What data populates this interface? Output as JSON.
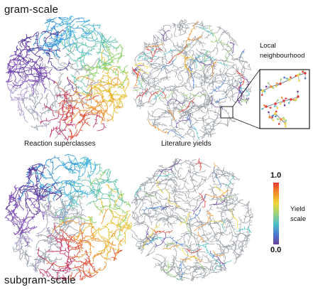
{
  "headings": {
    "top": "gram-scale",
    "bottom": "subgram-scale"
  },
  "panels": {
    "left_label": "Reaction superclasses",
    "right_label": "Literature yields"
  },
  "inset": {
    "label_line1": "Local",
    "label_line2": "neighbourhood"
  },
  "colorbar": {
    "max_label": "1.0",
    "min_label": "0.0",
    "title_line1": "Yield",
    "title_line2": "scale",
    "gradient_colors": [
      "#e53935",
      "#f28e2b",
      "#f2d43a",
      "#9fd37a",
      "#4fc1c4",
      "#4a7bd1",
      "#6a3fa0"
    ]
  },
  "palette": {
    "superclasses": [
      "#7b4bb5",
      "#5a3c9e",
      "#2f8fd8",
      "#49b5e0",
      "#6cc5b0",
      "#8fd16a",
      "#e8c238",
      "#f09a3a",
      "#e0553f",
      "#c53d6f",
      "#9aa3ad",
      "#b7a5d6"
    ],
    "yield_dim": "#9aa0a6"
  }
}
